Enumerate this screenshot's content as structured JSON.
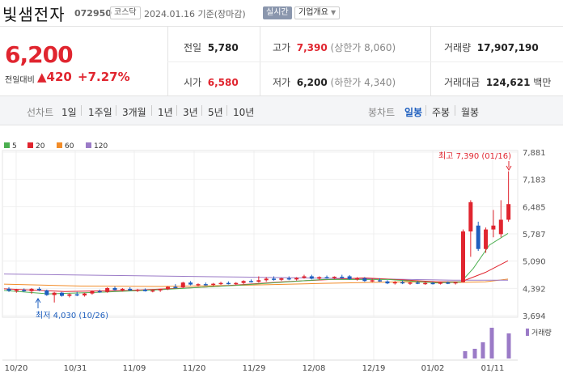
{
  "stock": {
    "name": "빛샘전자",
    "code": "072950",
    "market": "코스닥",
    "date": "2024.01.16 기준(장마감)",
    "realtime": "실시간",
    "company_info": "기업개요"
  },
  "price": {
    "current": "6,200",
    "change_label": "전일대비",
    "change_arrow": "▲",
    "change": "420",
    "change_pct": "+7.27%"
  },
  "stats": {
    "prev_label": "전일",
    "prev": "5,780",
    "open_label": "시가",
    "open": "6,580",
    "high_label": "고가",
    "high": "7,390",
    "high_limit": "(상한가 8,060)",
    "low_label": "저가",
    "low": "6,200",
    "low_limit": "(하한가 4,340)",
    "volume_label": "거래량",
    "volume": "17,907,190",
    "amount_label": "거래대금",
    "amount": "124,621",
    "amount_unit": "백만"
  },
  "periods": {
    "line_label": "선차트",
    "line_items": [
      "1일",
      "1주일",
      "3개월",
      "1년",
      "3년",
      "5년",
      "10년"
    ],
    "candle_label": "봉차트",
    "candle_items": [
      "일봉",
      "주봉",
      "월봉"
    ],
    "candle_selected": "일봉"
  },
  "chart_data": {
    "type": "candlestick",
    "legend": [
      {
        "name": "5",
        "color": "#4caf50"
      },
      {
        "name": "20",
        "color": "#e0252f"
      },
      {
        "name": "60",
        "color": "#f28c28"
      },
      {
        "name": "120",
        "color": "#9b7bc7"
      }
    ],
    "y_ticks": [
      "7,881",
      "7,183",
      "6,485",
      "5,787",
      "5,090",
      "4,392",
      "3,694"
    ],
    "x_ticks": [
      "10/20",
      "10/31",
      "11/09",
      "11/20",
      "11/29",
      "12/08",
      "12/19",
      "01/02",
      "01/11"
    ],
    "high_note": "최고 7,390 (01/16)",
    "low_note": "최저 4,030 (10/26)",
    "volume_label": "거래량",
    "ylim": [
      3694,
      7881
    ]
  }
}
